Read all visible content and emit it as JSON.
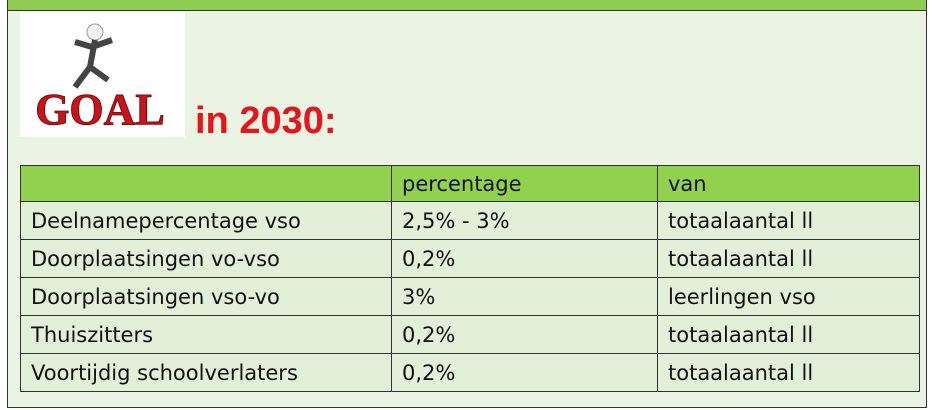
{
  "logo_text": "GOAL",
  "heading": "in 2030:",
  "table": {
    "header": [
      "",
      "percentage",
      "van"
    ],
    "rows": [
      [
        "Deelnamepercentage vso",
        "2,5% - 3%",
        "totaalaantal ll"
      ],
      [
        "Doorplaatsingen vo-vso",
        "0,2%",
        "totaalaantal ll"
      ],
      [
        "Doorplaatsingen vso-vo",
        "3%",
        "leerlingen vso"
      ],
      [
        "Thuiszitters",
        "0,2%",
        "totaalaantal ll"
      ],
      [
        "Voortijdig schoolverlaters",
        "0,2%",
        "totaalaantal ll"
      ]
    ]
  }
}
